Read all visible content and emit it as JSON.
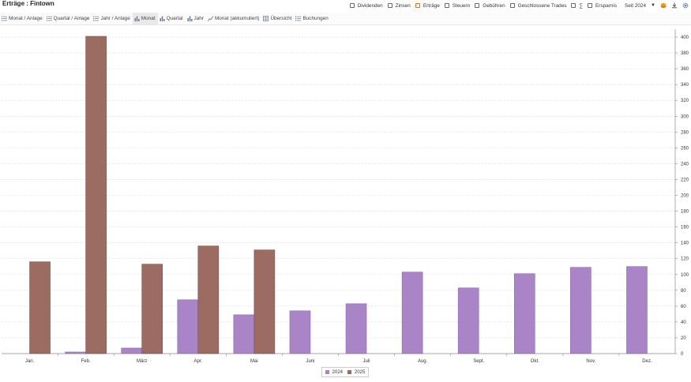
{
  "window": {
    "title": "Erträge : Fintown"
  },
  "filters": [
    {
      "label": "Dividenden",
      "checked": false
    },
    {
      "label": "Zinsen",
      "checked": false
    },
    {
      "label": "Erträge",
      "checked": true
    },
    {
      "label": "Steuern",
      "checked": false
    },
    {
      "label": "Gebühren",
      "checked": false
    },
    {
      "label": "Geschlossene Trades",
      "checked": false
    },
    {
      "label": "∑",
      "checked": false
    },
    {
      "label": "Ersparnis",
      "checked": false
    }
  ],
  "period": {
    "label": "Seit 2024"
  },
  "toolbar_icons": [
    "coins-icon",
    "download-icon",
    "gear-icon"
  ],
  "tabs": [
    {
      "label": "Monat / Anlage",
      "icon": "list-icon",
      "active": false
    },
    {
      "label": "Quartal / Anlage",
      "icon": "list-icon",
      "active": false
    },
    {
      "label": "Jahr / Anlage",
      "icon": "list-icon",
      "active": false
    },
    {
      "label": "Monat",
      "icon": "bar-chart-icon",
      "active": true
    },
    {
      "label": "Quartal",
      "icon": "bar-chart-icon",
      "active": false
    },
    {
      "label": "Jahr",
      "icon": "bar-chart-icon",
      "active": false
    },
    {
      "label": "Monat (akkumuliert)",
      "icon": "line-chart-icon",
      "active": false
    },
    {
      "label": "Übersicht",
      "icon": "table-icon",
      "active": false
    },
    {
      "label": "Buchungen",
      "icon": "list-icon",
      "active": false
    }
  ],
  "colors": {
    "series_2024": "#a985c8",
    "series_2025": "#9c6b62",
    "accent": "#e07a14"
  },
  "chart_data": {
    "type": "bar",
    "categories": [
      "Jan.",
      "Feb.",
      "März",
      "Apr.",
      "Mai",
      "Juni",
      "Juli",
      "Aug.",
      "Sept.",
      "Okt.",
      "Nov.",
      "Dez."
    ],
    "series": [
      {
        "name": "2024",
        "values": [
          0,
          2,
          7,
          68,
          49,
          54,
          63,
          103,
          83,
          101,
          109,
          110
        ]
      },
      {
        "name": "2025",
        "values": [
          116,
          401,
          113,
          136,
          131,
          0,
          0,
          0,
          0,
          0,
          0,
          0
        ]
      }
    ],
    "ylim": [
      0,
      410
    ],
    "yticks": [
      0,
      20,
      40,
      60,
      80,
      100,
      120,
      140,
      160,
      180,
      200,
      220,
      240,
      260,
      280,
      300,
      320,
      340,
      360,
      380,
      400
    ],
    "y_axis_position": "right",
    "grid": true,
    "legend_position": "bottom-center"
  }
}
